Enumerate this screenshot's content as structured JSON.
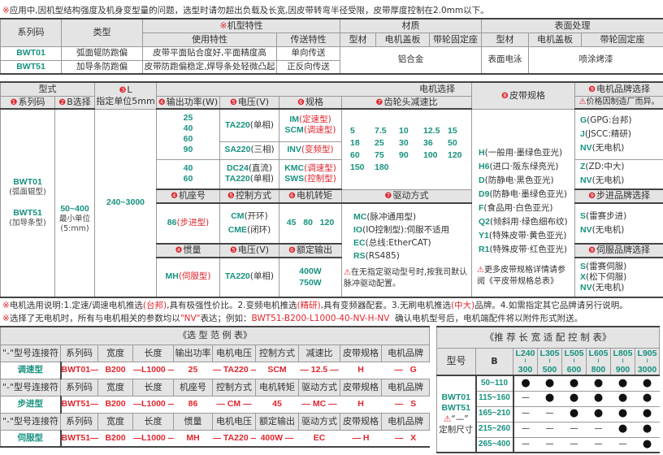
{
  "notice": {
    "mark": "※",
    "text": "应用中,因机型结构强度及机身变型量的问题，选型时请勿超出负载及长宽,因皮带转弯半径受限，皮带厚度控制在2.0mm以下。"
  },
  "features_table": {
    "headers": {
      "series": "系列码",
      "type": "类型",
      "model_features_mark": "※",
      "model_features": "机型特性",
      "usage": "使用特性",
      "transport": "传送特性",
      "material": "材质",
      "surface": "表面处理",
      "profile": "型材",
      "motor_cover": "电机盖板",
      "pulley_mount": "带轮固定座"
    },
    "rows": [
      {
        "series": "BWT01",
        "type": "弧面辊防跑偏",
        "usage": "皮带平面贴合度好,平面精度高",
        "transport": "单向传送"
      },
      {
        "series": "BWT51",
        "type": "加导条防跑偏",
        "usage": "皮带防跑偏稳定,焊导条处轻微凸起",
        "transport": "正反向传送"
      }
    ],
    "material_value": "铝合金",
    "surface_profile": "表面电泳",
    "surface_other": "喷涂烤漆"
  },
  "selection": {
    "form": "型式",
    "motor_selection": "电机选择",
    "series": {
      "num": "❶",
      "label": "系列码"
    },
    "b": {
      "num": "❷",
      "label": "B选择"
    },
    "l": {
      "num": "❸",
      "label": "L",
      "sub": "指定单位5mm"
    },
    "power": {
      "num": "❹",
      "label": "输出功率(W)"
    },
    "voltage": {
      "num": "❺",
      "label": "电压(V)"
    },
    "spec": {
      "num": "❻",
      "label": "规格"
    },
    "gear": {
      "num": "❼",
      "label": "齿轮头减速比"
    },
    "belt": {
      "num": "❽",
      "label": "皮带规格"
    },
    "brand": {
      "num": "❾",
      "label": "电机品牌选择",
      "note": "价格因制造厂而异。"
    },
    "series_values": [
      {
        "code": "BWT01",
        "desc": "(弧面辊型)"
      },
      {
        "code": "BWT51",
        "desc": "(加导条型)"
      }
    ],
    "b_value": "50~400",
    "b_unit": "最小单位",
    "b_unit2": "(5:mm)",
    "l_value": "240~3000",
    "ac_powers": "25\n40\n60\n90",
    "dc_powers": "40\n60",
    "ta220": {
      "code": "TA220",
      "label": "(单相)"
    },
    "sa220": {
      "code": "SA220",
      "label": "(三相)"
    },
    "dc24": {
      "code": "DC24",
      "label": "(直流)"
    },
    "im": {
      "code": "IM",
      "label": "(定速型)"
    },
    "scm": {
      "code": "SCM",
      "label": "(调速型)"
    },
    "inv": {
      "code": "INV",
      "label": "(变频型)"
    },
    "kmc": {
      "code": "KMC",
      "label": "(调速型)"
    },
    "sws": {
      "code": "SWS",
      "label": "(控制型)"
    },
    "gear_ratios": [
      "5",
      "7.5",
      "10",
      "12.5",
      "15",
      "18",
      "25",
      "30",
      "36",
      "50",
      "60",
      "75",
      "90",
      "100",
      "120",
      "150",
      "180"
    ],
    "brands_ac": [
      {
        "code": "G",
        "label": "(GPG:台邦)"
      },
      {
        "code": "J",
        "label": "(JSCC:精研)"
      },
      {
        "code": "NV",
        "label": "(无电机)"
      }
    ],
    "brands_dc": [
      {
        "code": "Z",
        "label": "(ZD:中大)"
      },
      {
        "code": "NV",
        "label": "(无电机)"
      }
    ],
    "frame": {
      "num": "❹",
      "label": "机座号"
    },
    "control": {
      "num": "❺",
      "label": "控制方式"
    },
    "torque": {
      "num": "❻",
      "label": "电机转矩"
    },
    "drive": {
      "num": "❼",
      "label": "驱动方式"
    },
    "stepper_brand": {
      "num": "❾",
      "label": "步进品牌选择"
    },
    "frame_value": {
      "code": "86",
      "label": "(步进型)"
    },
    "cm": {
      "code": "CM",
      "label": "(开环)"
    },
    "cme": {
      "code": "CME",
      "label": "(闭环)"
    },
    "torques": "45   80   120",
    "drives": [
      {
        "code": "MC",
        "label": "(脉冲通用型)"
      },
      {
        "code": "IO",
        "label": "(IO控制型):伺服不适用"
      },
      {
        "code": "EC",
        "label": "(总线:EtherCAT)"
      },
      {
        "code": "RS",
        "label": "(RS485)"
      }
    ],
    "drive_note": "在无指定驱动型号时,按我司默认脉冲驱动配置。",
    "stepper_brands": [
      {
        "code": "S",
        "label": "(雷赛步进)"
      },
      {
        "code": "NV",
        "label": "(无电机)"
      }
    ],
    "inertia": {
      "num": "❹",
      "label": "惯量"
    },
    "voltage2": {
      "num": "❺",
      "label": "电压(V)"
    },
    "rated": {
      "num": "❻",
      "label": "额定输出"
    },
    "servo_brand": {
      "num": "❾",
      "label": "伺服品牌选择"
    },
    "mh": {
      "code": "MH",
      "label": "(伺服型)"
    },
    "rated_values": "400W\n750W",
    "servo_brands": [
      {
        "code": "S",
        "label": "(雷赛伺服)"
      },
      {
        "code": "X",
        "label": "(松下伺服)"
      },
      {
        "code": "NV",
        "label": "(无电机)"
      }
    ],
    "belts": [
      {
        "code": "H",
        "label": "(一般用·墨绿色亚光)"
      },
      {
        "code": "H6",
        "label": "(进口·阪东绿亮光)"
      },
      {
        "code": "D",
        "label": "(防静电·黑色亚光)"
      },
      {
        "code": "D9",
        "label": "(防静电·墨绿色亚光)"
      },
      {
        "code": "F",
        "label": "(食品用·白色亚光)"
      },
      {
        "code": "Q2",
        "label": "(倾斜用·绿色细布纹)"
      },
      {
        "code": "Y1",
        "label": "(特殊皮带·黄色亚光)"
      },
      {
        "code": "R1",
        "label": "(特殊皮带·红色亚光)"
      }
    ],
    "belt_note": "更多皮带规格详情请参阅《平皮带规格总表》"
  },
  "notes": {
    "line1": {
      "mark": "※",
      "a": "电机选用说明:1.定速/调速电机推选",
      "b": "(台邦)",
      "c": ",具有极强性价比。2.变频电机推选",
      "d": "(精研)",
      "e": ",具有变频器配套。3.无刷电机推选",
      "f": "(中大)",
      "g": "品牌。4.如需指定其它品牌请另行说明。"
    },
    "line2": {
      "mark": "※",
      "a": "选择了无电机时，所有与电机相关的参数均以",
      "b": "\"NV\"",
      "c": "表达；例如：",
      "d": "BWT51-B200-L1000-40-NV-H-NV",
      "e": "  确认电机型号后，电机端配件将以附件形式附送。"
    }
  },
  "example_table": {
    "title": "《选 型 范 例 表》",
    "groups": [
      {
        "headers": [
          "\"-\"型号连接符",
          "系列码",
          "宽度",
          "长度",
          "输出功率",
          "电机电压",
          "控制方式",
          "减速比",
          "皮带规格",
          "电机品牌"
        ],
        "name": "调速型",
        "values": [
          "BWT01—",
          "B200",
          "—L1000 —",
          "25",
          "— TA220 —",
          "SCM",
          "— 12.5 —",
          "H",
          "—   G"
        ]
      },
      {
        "headers": [
          "\"-\"型号连接符",
          "系列码",
          "宽度",
          "长度",
          "机座号",
          "控制方式",
          "电机转矩",
          "驱动方式",
          "皮带规格",
          "电机品牌"
        ],
        "name": "步进型",
        "values": [
          "BWT51—",
          "B200",
          "—L1000 —",
          "86",
          "— CM —",
          "45",
          "— MC —",
          "H",
          "—   S"
        ]
      },
      {
        "headers": [
          "\"-\"型号连接符",
          "系列码",
          "宽度",
          "长度",
          "惯量",
          "电机电压",
          "额定输出",
          "驱动方式",
          "皮带规格",
          "电机品牌"
        ],
        "name": "伺服型",
        "values": [
          "BWT51—",
          "B200",
          "—L1000 —",
          "MH",
          "— TA220 —",
          "400W —",
          "EC",
          "— H",
          "—   X"
        ]
      }
    ]
  },
  "recommend_table": {
    "title": "《推 荐 长 宽 适 配 控 制 表》",
    "model_label": "型号",
    "b_label": "B",
    "l_ranges": [
      {
        "from": "L240",
        "to": "300"
      },
      {
        "from": "L305",
        "to": "500"
      },
      {
        "from": "L505",
        "to": "600"
      },
      {
        "from": "L605",
        "to": "800"
      },
      {
        "from": "L805",
        "to": "900"
      },
      {
        "from": "L905",
        "to": "3000"
      }
    ],
    "range_sep": "≀",
    "models": [
      "BWT01",
      "BWT51"
    ],
    "custom_mark": "“—”",
    "custom_label": "定制尺寸",
    "rows": [
      {
        "b": "50~110",
        "marks": [
          "●",
          "●",
          "●",
          "●",
          "●",
          "●"
        ]
      },
      {
        "b": "115~160",
        "marks": [
          "—",
          "●",
          "●",
          "●",
          "●",
          "●"
        ]
      },
      {
        "b": "165~210",
        "marks": [
          "—",
          "—",
          "●",
          "●",
          "●",
          "●"
        ]
      },
      {
        "b": "215~260",
        "marks": [
          "—",
          "—",
          "—",
          "—",
          "●",
          "●"
        ]
      },
      {
        "b": "265~400",
        "marks": [
          "—",
          "—",
          "—",
          "—",
          "—",
          "●"
        ]
      }
    ]
  },
  "colors": {
    "accent_green": "#17927f",
    "accent_red": "#e0262e",
    "header_gray": "#e4e4e4"
  }
}
